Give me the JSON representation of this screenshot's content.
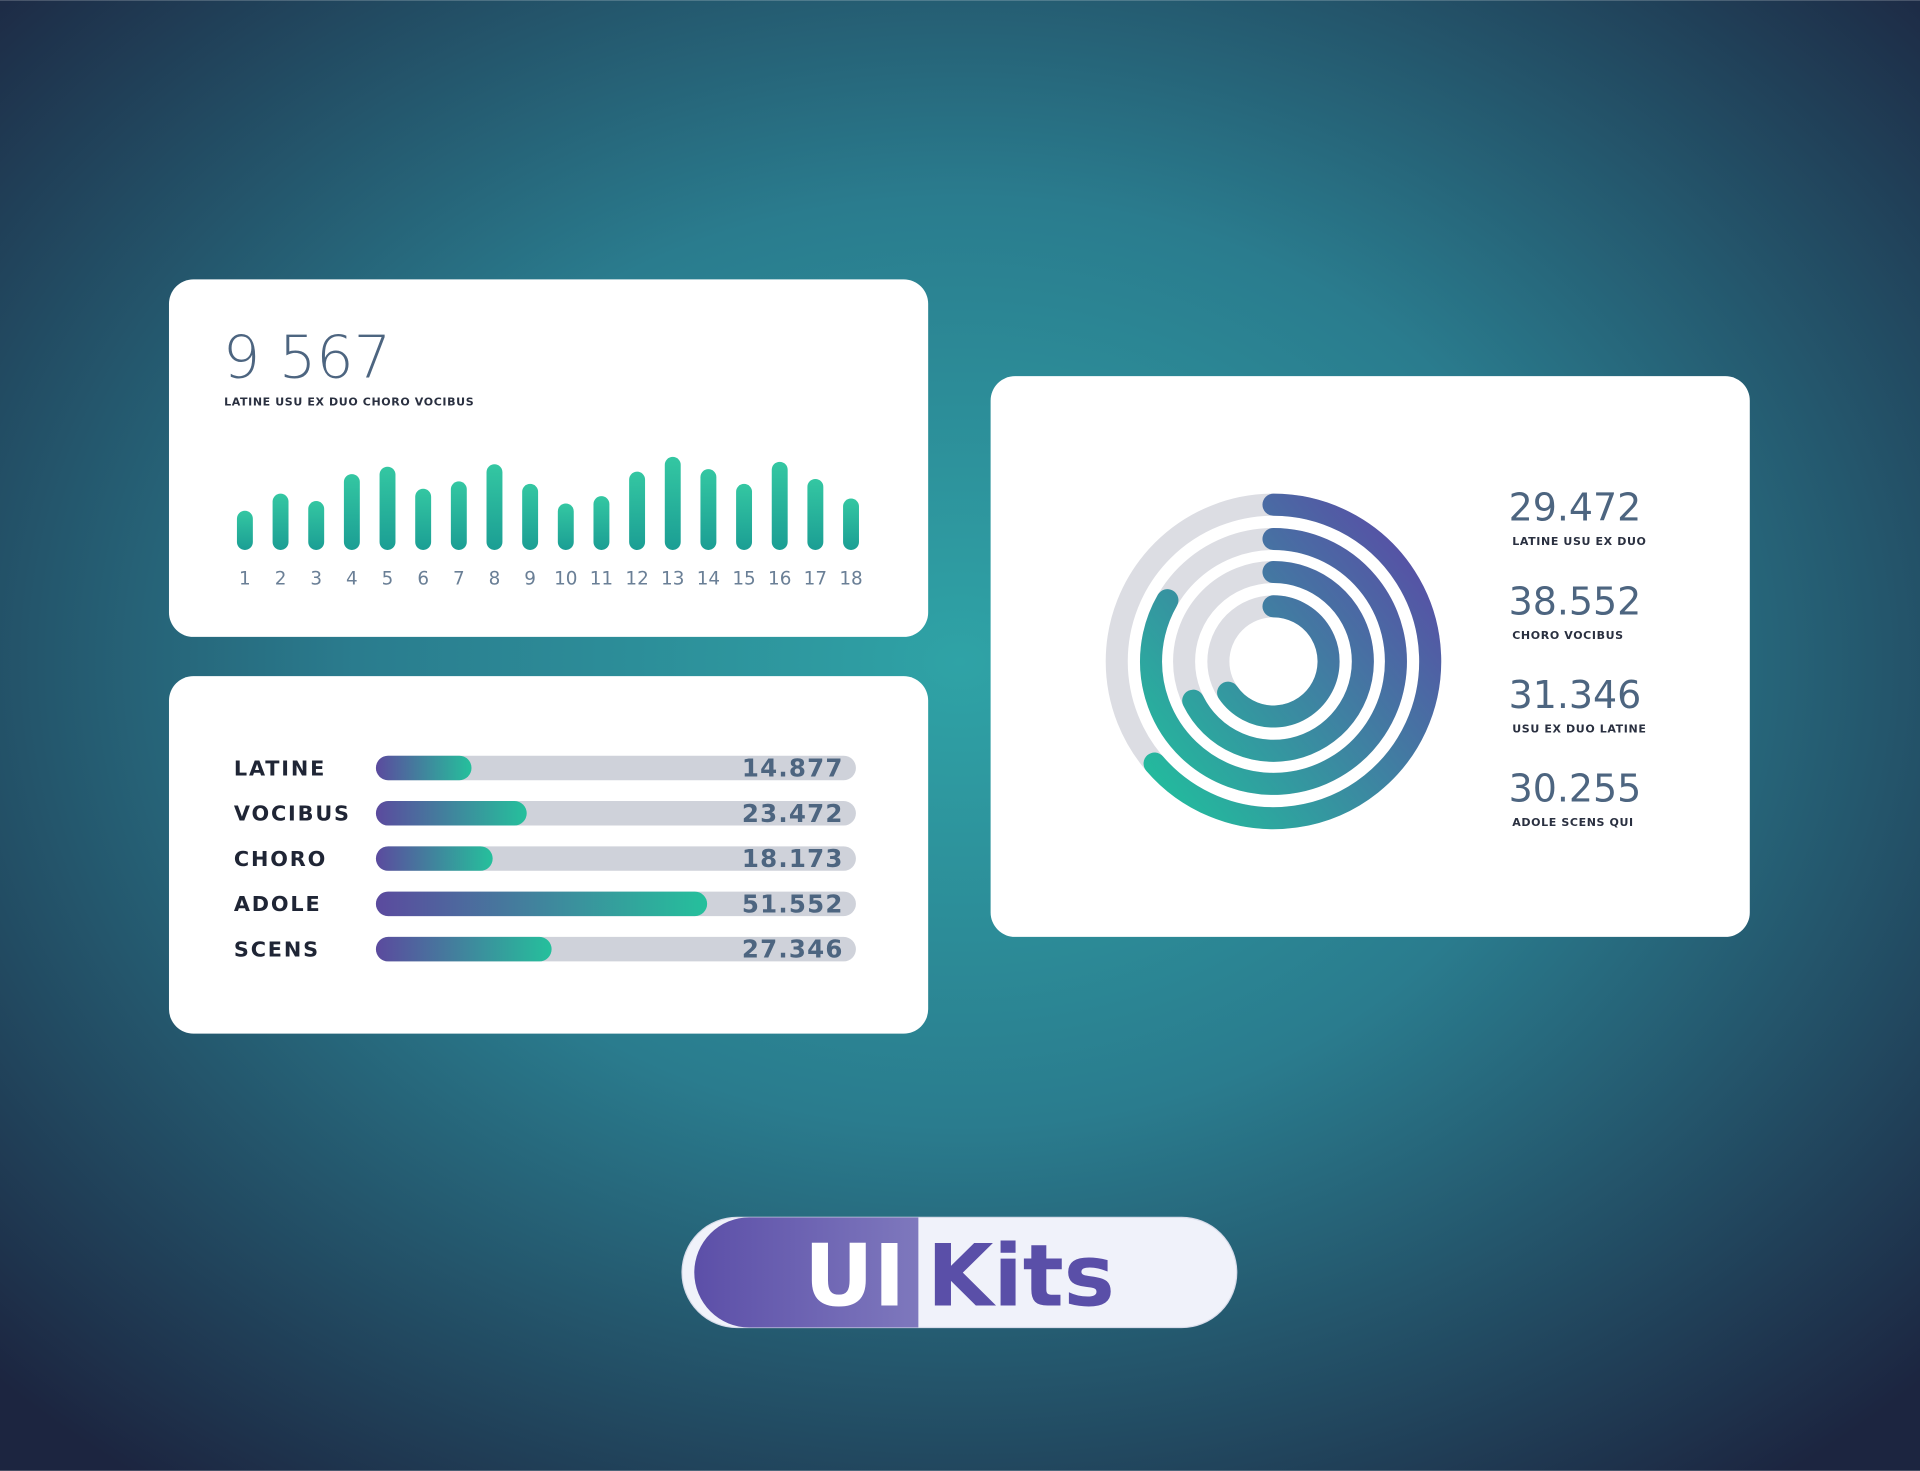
{
  "chart_data": [
    {
      "type": "bar",
      "headline": "9 567",
      "subtitle": "LATINE USU EX DUO CHORO VOCIBUS",
      "categories": [
        "1",
        "2",
        "3",
        "4",
        "5",
        "6",
        "7",
        "8",
        "9",
        "10",
        "11",
        "12",
        "13",
        "14",
        "15",
        "16",
        "17",
        "18"
      ],
      "values": [
        32,
        46,
        40,
        62,
        68,
        50,
        56,
        70,
        54,
        38,
        44,
        64,
        76,
        66,
        54,
        72,
        58,
        42
      ],
      "colors": [
        "#34c7a2",
        "#1b9e94"
      ]
    },
    {
      "type": "hbar",
      "categories": [
        "LATINE",
        "VOCIBUS",
        "CHORO",
        "ADOLE",
        "SCENS"
      ],
      "values": [
        14.877,
        23.472,
        18.173,
        51.552,
        27.346
      ],
      "colors": [
        "#5b4a9e",
        "#25c09c"
      ]
    },
    {
      "type": "radial",
      "categories": [
        "LATINE USU EX DUO",
        "CHORO VOCIBUS",
        "USU EX DUO LATINE",
        "ADOLE SCENS QUI"
      ],
      "values": [
        29.472,
        38.552,
        31.346,
        30.255
      ],
      "colors": [
        "#5a4aa6",
        "#22bc9d"
      ]
    }
  ],
  "badge": {
    "left": "UI",
    "right": "Kits"
  }
}
